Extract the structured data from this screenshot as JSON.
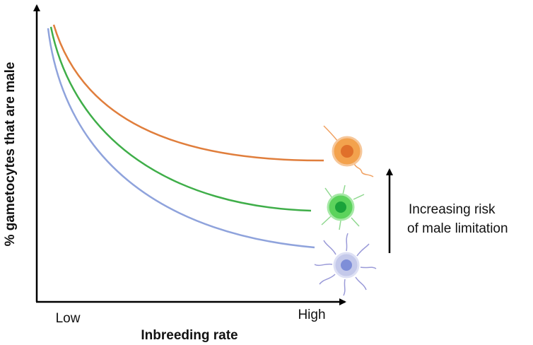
{
  "axes": {
    "y_label": "% gametocytes that are male",
    "x_label": "Inbreeding rate",
    "x_low": "Low",
    "x_high": "High"
  },
  "annotation": {
    "line1": "Increasing risk",
    "line2": "of male limitation"
  }
}
